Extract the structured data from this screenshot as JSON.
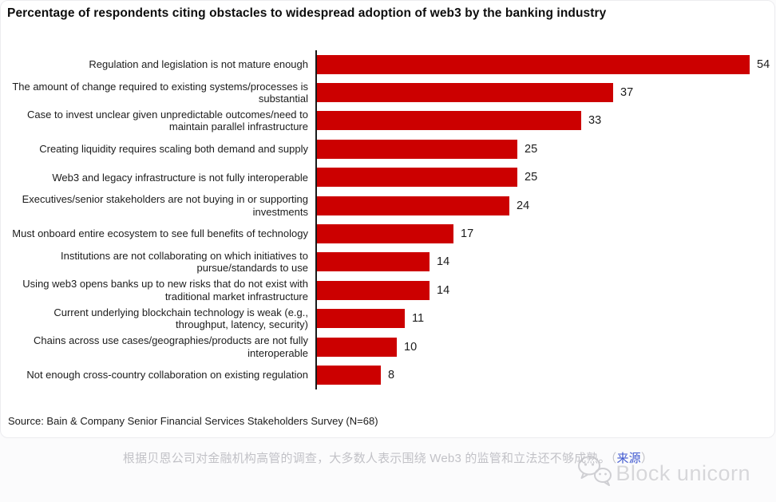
{
  "page": {
    "source": "Source: Bain & Company Senior Financial Services Stakeholders Survey (N=68)",
    "caption": {
      "text": "根据贝恩公司对金融机构高管的调查，大多数人表示围绕 Web3 的监管和立法还不够成熟。",
      "paren_open": "（",
      "link_text": "来源",
      "paren_close": "）",
      "link_color": "#4059d0"
    },
    "watermark": {
      "brand": "Block unicorn",
      "icon": "wechat-icon",
      "color": "#d7d7da"
    }
  },
  "chart_data": {
    "type": "bar",
    "orientation": "horizontal",
    "title": "Percentage of respondents citing obstacles to widespread adoption of web3 by the banking industry",
    "xlabel": "",
    "ylabel": "",
    "xlim": [
      0,
      56
    ],
    "xmax": 54,
    "grid": false,
    "legend": false,
    "bar_color": "#CC0000",
    "axis_color": "#1a1a1a",
    "categories": [
      "Regulation and legislation is not mature enough",
      "The amount of change required to existing systems/processes is substantial",
      "Case to invest unclear given unpredictable outcomes/need to maintain parallel infrastructure",
      "Creating liquidity requires scaling both demand and supply",
      "Web3 and legacy infrastructure is not fully interoperable",
      "Executives/senior stakeholders are not buying in or supporting investments",
      "Must onboard entire ecosystem to see full benefits of technology",
      "Institutions are not collaborating on which initiatives to pursue/standards to use",
      "Using web3 opens banks up to new risks that do not exist with traditional market infrastructure",
      "Current underlying blockchain technology is weak (e.g., throughput, latency, security)",
      "Chains across use cases/geographies/products are not fully interoperable",
      "Not enough cross-country collaboration on existing regulation"
    ],
    "values": [
      54,
      37,
      33,
      25,
      25,
      24,
      17,
      14,
      14,
      11,
      10,
      8
    ],
    "source": "Source: Bain & Company Senior Financial Services Stakeholders Survey (N=68)"
  }
}
